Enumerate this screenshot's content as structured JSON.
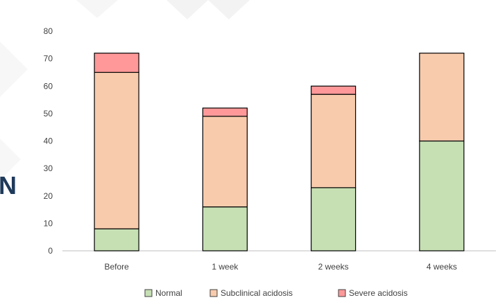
{
  "edge_text": "N",
  "chart_data": {
    "type": "bar",
    "stacked": true,
    "categories": [
      "Before",
      "1 week",
      "2 weeks",
      "4 weeks"
    ],
    "series": [
      {
        "name": "Normal",
        "values": [
          8,
          16,
          23,
          40
        ],
        "color": "#c6e0b4"
      },
      {
        "name": "Subclinical acidosis",
        "values": [
          57,
          33,
          34,
          32
        ],
        "color": "#f8cbad"
      },
      {
        "name": "Severe acidosis",
        "values": [
          7,
          3,
          3,
          0
        ],
        "color": "#ff9999"
      }
    ],
    "ylim": [
      0,
      80
    ],
    "yticks": [
      "0",
      "10",
      "20",
      "30",
      "40",
      "50",
      "60",
      "70",
      "80"
    ],
    "title": "",
    "xlabel": "",
    "ylabel": "",
    "grid": false,
    "legend_position": "bottom"
  }
}
